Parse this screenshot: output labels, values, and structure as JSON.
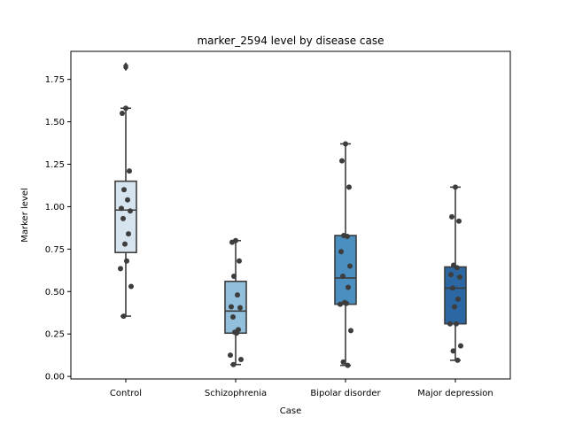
{
  "chart_data": {
    "type": "box",
    "title": "marker_2594 level by disease case",
    "xlabel": "Case",
    "ylabel": "Marker level",
    "ylim": [
      -0.015,
      1.915
    ],
    "yticks": [
      "0.00",
      "0.25",
      "0.50",
      "0.75",
      "1.00",
      "1.25",
      "1.50",
      "1.75"
    ],
    "categories": [
      "Control",
      "Schizophrenia",
      "Bipolar disorder",
      "Major depression"
    ],
    "colors": [
      "#d6e4f0",
      "#92bfdb",
      "#4a8fc0",
      "#2b67a3"
    ],
    "boxes": [
      {
        "whislo": 0.355,
        "q1": 0.73,
        "med": 0.98,
        "q3": 1.15,
        "whishi": 1.58,
        "fliers": [
          1.82,
          1.83
        ]
      },
      {
        "whislo": 0.07,
        "q1": 0.255,
        "med": 0.385,
        "q3": 0.56,
        "whishi": 0.8,
        "fliers": []
      },
      {
        "whislo": 0.065,
        "q1": 0.425,
        "med": 0.58,
        "q3": 0.83,
        "whishi": 1.37,
        "fliers": []
      },
      {
        "whislo": 0.095,
        "q1": 0.31,
        "med": 0.52,
        "q3": 0.645,
        "whishi": 1.115,
        "fliers": []
      }
    ],
    "points": [
      [
        1.58,
        1.55,
        1.21,
        1.1,
        1.04,
        0.99,
        0.975,
        0.93,
        0.84,
        0.78,
        0.68,
        0.635,
        0.53,
        0.355
      ],
      [
        0.8,
        0.79,
        0.68,
        0.59,
        0.48,
        0.41,
        0.405,
        0.35,
        0.275,
        0.26,
        0.255,
        0.125,
        0.1,
        0.07
      ],
      [
        1.37,
        1.27,
        1.115,
        0.83,
        0.825,
        0.735,
        0.65,
        0.59,
        0.525,
        0.435,
        0.43,
        0.425,
        0.27,
        0.085,
        0.065
      ],
      [
        1.115,
        0.94,
        0.915,
        0.655,
        0.64,
        0.6,
        0.585,
        0.52,
        0.455,
        0.41,
        0.31,
        0.31,
        0.18,
        0.15,
        0.095
      ]
    ]
  }
}
